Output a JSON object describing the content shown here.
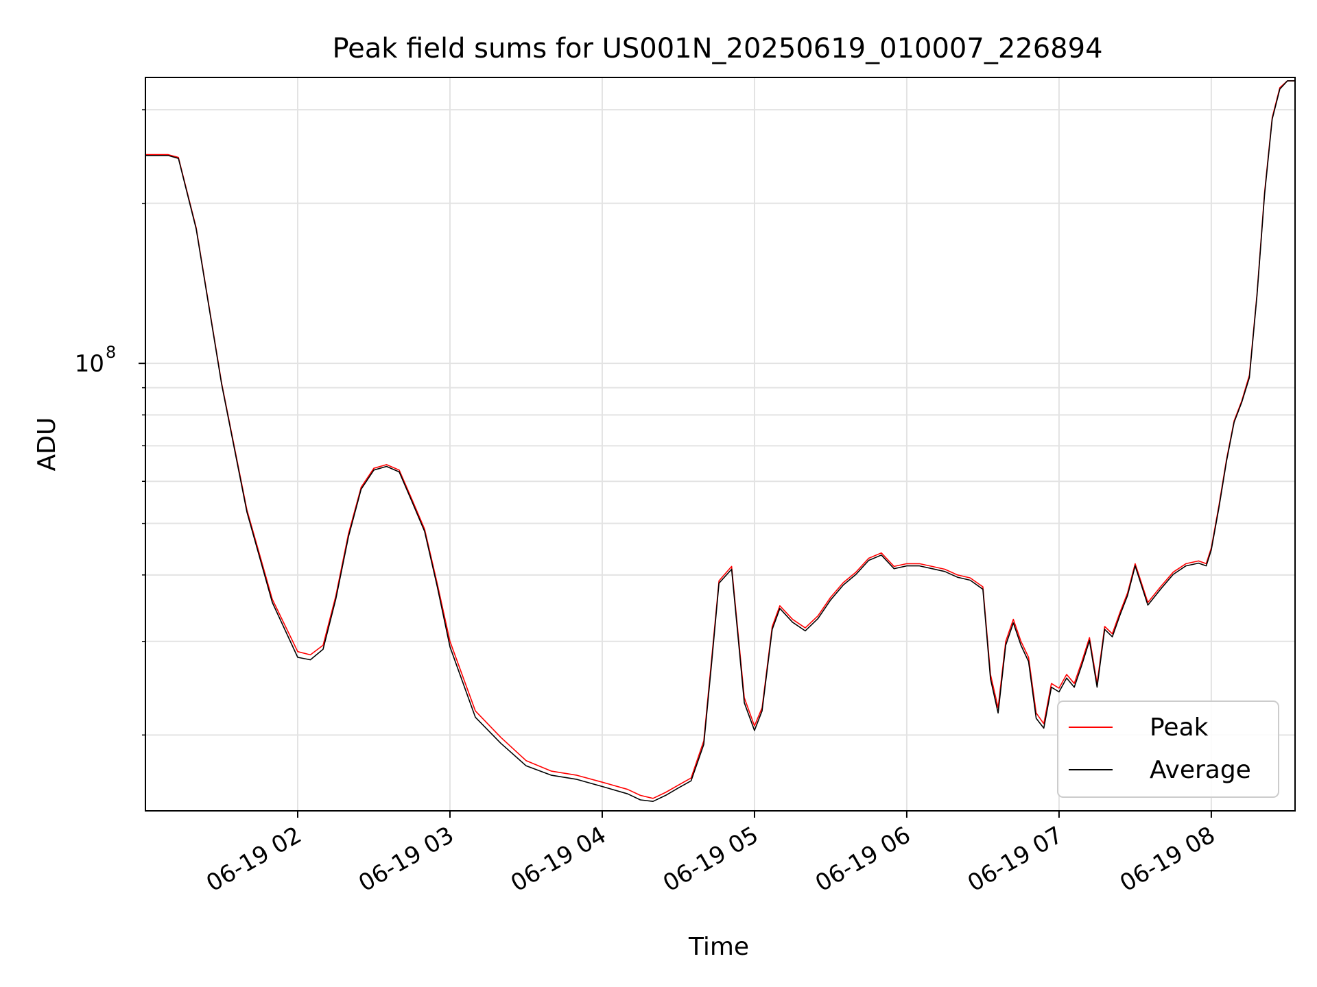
{
  "chart_data": {
    "type": "line",
    "title": "Peak field sums for US001N_20250619_010007_226894",
    "xlabel": "Time",
    "ylabel": "ADU",
    "y_scale": "log",
    "xlim": [
      "06-19 01:00",
      "06-19 08:33"
    ],
    "ylim": [
      14400000,
      345000000
    ],
    "grid": true,
    "legend_position": "lower-right",
    "x_ticks": [
      {
        "t": "06-19 02:00",
        "label": "06-19 02"
      },
      {
        "t": "06-19 03:00",
        "label": "06-19 03"
      },
      {
        "t": "06-19 04:00",
        "label": "06-19 04"
      },
      {
        "t": "06-19 05:00",
        "label": "06-19 05"
      },
      {
        "t": "06-19 06:00",
        "label": "06-19 06"
      },
      {
        "t": "06-19 07:00",
        "label": "06-19 07"
      },
      {
        "t": "06-19 08:00",
        "label": "06-19 08"
      }
    ],
    "y_ticks": [
      {
        "value": 100000000,
        "base": "10",
        "exp": "8"
      }
    ],
    "y_minor_ticks": [
      20000000,
      30000000,
      40000000,
      50000000,
      60000000,
      70000000,
      80000000,
      90000000,
      200000000,
      300000000
    ],
    "series": [
      {
        "name": "Peak",
        "color": "#ff0000",
        "x": [
          "06-19 01:00",
          "06-19 01:09",
          "06-19 01:13",
          "06-19 01:20",
          "06-19 01:30",
          "06-19 01:40",
          "06-19 01:50",
          "06-19 02:00",
          "06-19 02:05",
          "06-19 02:10",
          "06-19 02:15",
          "06-19 02:20",
          "06-19 02:25",
          "06-19 02:30",
          "06-19 02:35",
          "06-19 02:40",
          "06-19 02:45",
          "06-19 02:50",
          "06-19 02:55",
          "06-19 03:00",
          "06-19 03:10",
          "06-19 03:20",
          "06-19 03:30",
          "06-19 03:40",
          "06-19 03:50",
          "06-19 04:00",
          "06-19 04:10",
          "06-19 04:15",
          "06-19 04:20",
          "06-19 04:25",
          "06-19 04:30",
          "06-19 04:35",
          "06-19 04:40",
          "06-19 04:43",
          "06-19 04:46",
          "06-19 04:51",
          "06-19 04:56",
          "06-19 05:00",
          "06-19 05:03",
          "06-19 05:07",
          "06-19 05:10",
          "06-19 05:15",
          "06-19 05:20",
          "06-19 05:25",
          "06-19 05:30",
          "06-19 05:35",
          "06-19 05:40",
          "06-19 05:45",
          "06-19 05:50",
          "06-19 05:55",
          "06-19 06:00",
          "06-19 06:05",
          "06-19 06:10",
          "06-19 06:15",
          "06-19 06:20",
          "06-19 06:25",
          "06-19 06:30",
          "06-19 06:33",
          "06-19 06:36",
          "06-19 06:39",
          "06-19 06:42",
          "06-19 06:45",
          "06-19 06:48",
          "06-19 06:51",
          "06-19 06:54",
          "06-19 06:57",
          "06-19 07:00",
          "06-19 07:03",
          "06-19 07:06",
          "06-19 07:09",
          "06-19 07:12",
          "06-19 07:15",
          "06-19 07:18",
          "06-19 07:21",
          "06-19 07:24",
          "06-19 07:27",
          "06-19 07:30",
          "06-19 07:35",
          "06-19 07:40",
          "06-19 07:45",
          "06-19 07:50",
          "06-19 07:55",
          "06-19 07:58",
          "06-19 08:00",
          "06-19 08:03",
          "06-19 08:06",
          "06-19 08:09",
          "06-19 08:12",
          "06-19 08:15",
          "06-19 08:18",
          "06-19 08:21",
          "06-19 08:24",
          "06-19 08:27",
          "06-19 08:30",
          "06-19 08:33"
        ],
        "y": [
          247000000,
          247000000,
          244000000,
          180000000,
          92000000,
          53000000,
          36000000,
          28700000,
          28300000,
          29500000,
          36500000,
          47800000,
          58500000,
          63500000,
          64500000,
          63000000,
          55500000,
          48800000,
          38500000,
          30000000,
          22200000,
          19800000,
          17900000,
          17100000,
          16800000,
          16300000,
          15800000,
          15400000,
          15200000,
          15600000,
          16100000,
          16600000,
          19500000,
          27500000,
          39000000,
          41500000,
          23500000,
          20800000,
          22500000,
          32000000,
          35000000,
          33000000,
          31800000,
          33500000,
          36300000,
          38700000,
          40500000,
          43000000,
          44000000,
          41500000,
          42000000,
          42000000,
          41500000,
          41000000,
          40000000,
          39500000,
          38000000,
          26000000,
          22500000,
          30000000,
          33000000,
          30000000,
          28000000,
          22000000,
          21000000,
          25000000,
          24500000,
          26000000,
          25000000,
          27500000,
          30500000,
          25000000,
          32000000,
          31000000,
          34000000,
          37000000,
          42000000,
          35500000,
          38000000,
          40500000,
          42000000,
          42500000,
          42000000,
          45000000,
          54000000,
          66000000,
          78000000,
          85000000,
          95000000,
          135000000,
          210000000,
          290000000,
          330000000,
          340000000,
          340000000
        ]
      },
      {
        "name": "Average",
        "color": "#000000",
        "x": [
          "06-19 01:00",
          "06-19 01:09",
          "06-19 01:13",
          "06-19 01:20",
          "06-19 01:30",
          "06-19 01:40",
          "06-19 01:50",
          "06-19 02:00",
          "06-19 02:05",
          "06-19 02:10",
          "06-19 02:15",
          "06-19 02:20",
          "06-19 02:25",
          "06-19 02:30",
          "06-19 02:35",
          "06-19 02:40",
          "06-19 02:45",
          "06-19 02:50",
          "06-19 02:55",
          "06-19 03:00",
          "06-19 03:10",
          "06-19 03:20",
          "06-19 03:30",
          "06-19 03:40",
          "06-19 03:50",
          "06-19 04:00",
          "06-19 04:10",
          "06-19 04:15",
          "06-19 04:20",
          "06-19 04:25",
          "06-19 04:30",
          "06-19 04:35",
          "06-19 04:40",
          "06-19 04:43",
          "06-19 04:46",
          "06-19 04:51",
          "06-19 04:56",
          "06-19 05:00",
          "06-19 05:03",
          "06-19 05:07",
          "06-19 05:10",
          "06-19 05:15",
          "06-19 05:20",
          "06-19 05:25",
          "06-19 05:30",
          "06-19 05:35",
          "06-19 05:40",
          "06-19 05:45",
          "06-19 05:50",
          "06-19 05:55",
          "06-19 06:00",
          "06-19 06:05",
          "06-19 06:10",
          "06-19 06:15",
          "06-19 06:20",
          "06-19 06:25",
          "06-19 06:30",
          "06-19 06:33",
          "06-19 06:36",
          "06-19 06:39",
          "06-19 06:42",
          "06-19 06:45",
          "06-19 06:48",
          "06-19 06:51",
          "06-19 06:54",
          "06-19 06:57",
          "06-19 07:00",
          "06-19 07:03",
          "06-19 07:06",
          "06-19 07:09",
          "06-19 07:12",
          "06-19 07:15",
          "06-19 07:18",
          "06-19 07:21",
          "06-19 07:24",
          "06-19 07:27",
          "06-19 07:30",
          "06-19 07:35",
          "06-19 07:40",
          "06-19 07:45",
          "06-19 07:50",
          "06-19 07:55",
          "06-19 07:58",
          "06-19 08:00",
          "06-19 08:03",
          "06-19 08:06",
          "06-19 08:09",
          "06-19 08:12",
          "06-19 08:15",
          "06-19 08:18",
          "06-19 08:21",
          "06-19 08:24",
          "06-19 08:27",
          "06-19 08:30",
          "06-19 08:33"
        ],
        "y": [
          246000000,
          246000000,
          243000000,
          179000000,
          91500000,
          52500000,
          35500000,
          28000000,
          27700000,
          29000000,
          36000000,
          47200000,
          58000000,
          63000000,
          64000000,
          62500000,
          55000000,
          48300000,
          38000000,
          29300000,
          21600000,
          19300000,
          17500000,
          16800000,
          16500000,
          16000000,
          15500000,
          15100000,
          15000000,
          15400000,
          15900000,
          16400000,
          19200000,
          27000000,
          38600000,
          41000000,
          23000000,
          20400000,
          22200000,
          31600000,
          34600000,
          32600000,
          31400000,
          33100000,
          35900000,
          38300000,
          40100000,
          42600000,
          43600000,
          41100000,
          41600000,
          41600000,
          41100000,
          40600000,
          39600000,
          39100000,
          37600000,
          25500000,
          22000000,
          29500000,
          32500000,
          29500000,
          27500000,
          21500000,
          20600000,
          24600000,
          24100000,
          25600000,
          24600000,
          27100000,
          30100000,
          24600000,
          31600000,
          30600000,
          33600000,
          36600000,
          41600000,
          35100000,
          37600000,
          40100000,
          41600000,
          42100000,
          41600000,
          44600000,
          53500000,
          65500000,
          77500000,
          84500000,
          94000000,
          134000000,
          208000000,
          288000000,
          328000000,
          340000000,
          340000000
        ]
      }
    ]
  }
}
